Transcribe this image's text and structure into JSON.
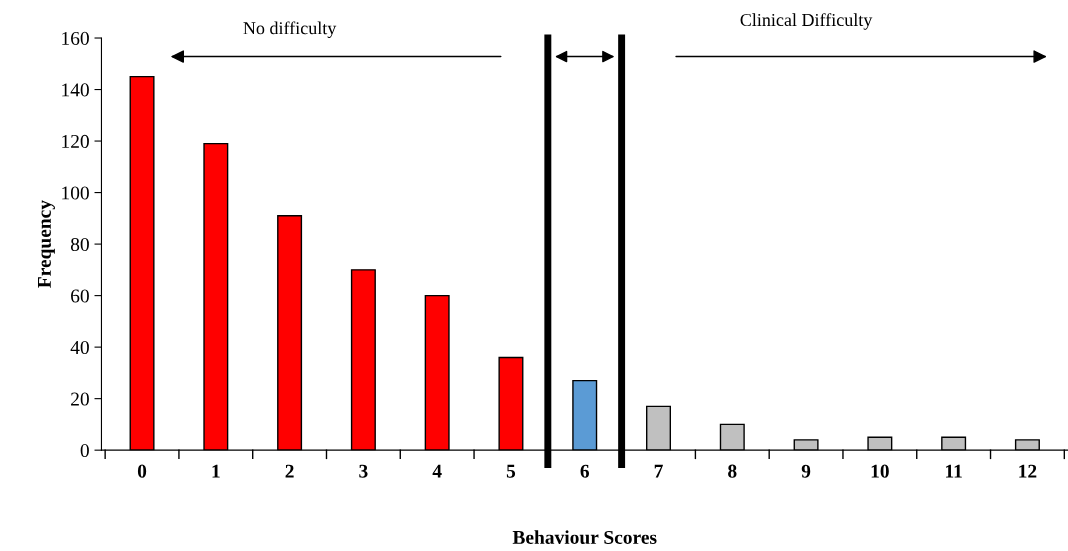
{
  "chart_data": {
    "type": "bar",
    "xlabel": "Behaviour Scores",
    "ylabel": "Frequency",
    "categories": [
      "0",
      "1",
      "2",
      "3",
      "4",
      "5",
      "6",
      "7",
      "8",
      "9",
      "10",
      "11",
      "12"
    ],
    "values": [
      145,
      119,
      91,
      70,
      60,
      36,
      27,
      17,
      10,
      4,
      5,
      5,
      4
    ],
    "colors": [
      "#ff0000",
      "#ff0000",
      "#ff0000",
      "#ff0000",
      "#ff0000",
      "#ff0000",
      "#5b9bd5",
      "#c0c0c0",
      "#c0c0c0",
      "#c0c0c0",
      "#c0c0c0",
      "#c0c0c0",
      "#c0c0c0"
    ],
    "ylim": [
      0,
      160
    ],
    "yticks": [
      0,
      20,
      40,
      60,
      80,
      100,
      120,
      140,
      160
    ],
    "grid": false,
    "annotations": [
      "No difficulty",
      "Clinical Difficulty"
    ]
  }
}
